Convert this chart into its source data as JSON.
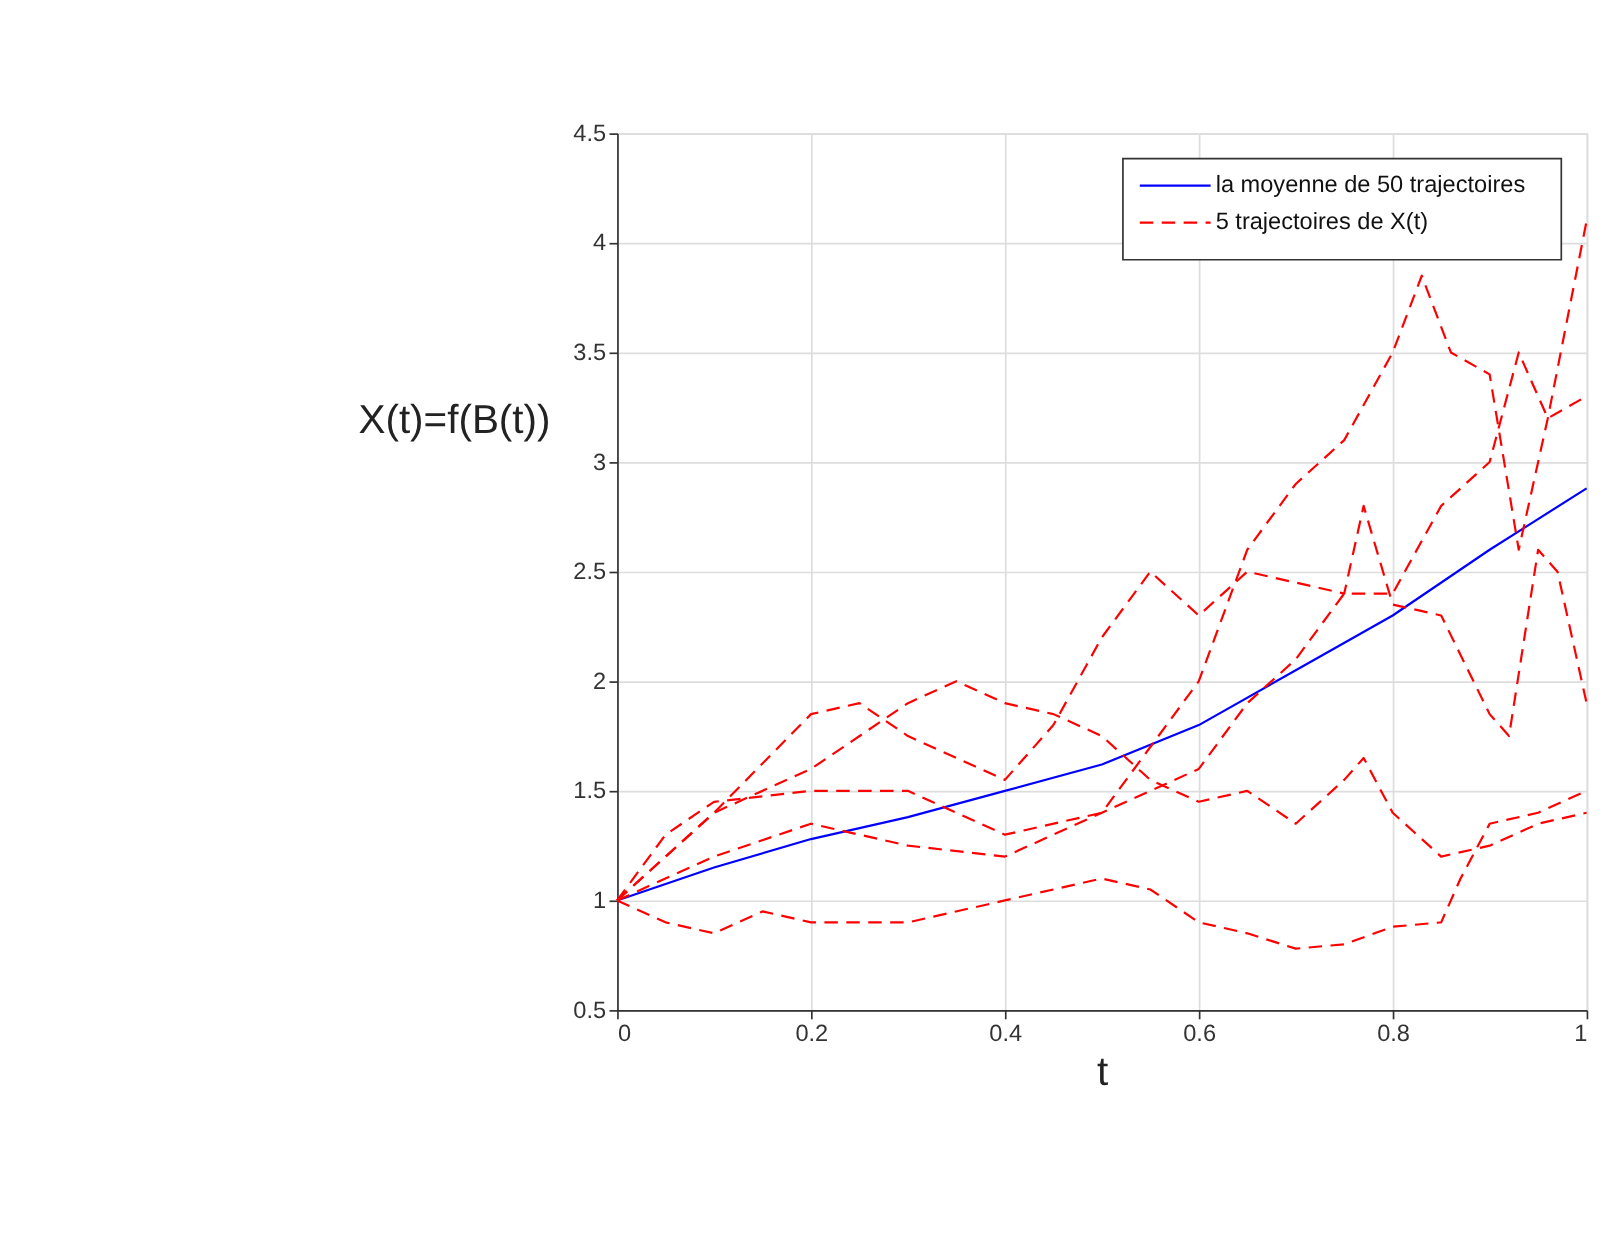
{
  "chart_data": {
    "type": "line",
    "xlabel": "t",
    "ylabel": "X(t)=f(B(t))",
    "xlim": [
      0,
      1
    ],
    "xticks": [
      0,
      0.2,
      0.4,
      0.6,
      0.8,
      1
    ],
    "ylim": [
      0.5,
      4.5
    ],
    "yticks": [
      0.5,
      1,
      1.5,
      2,
      2.5,
      3,
      3.5,
      4,
      4.5
    ],
    "grid": true,
    "legend": "top right",
    "series": [
      {
        "name": "la moyenne de 50 trajectoires",
        "color": "#0000ff",
        "line_style": "solid",
        "x": [
          0,
          0.1,
          0.2,
          0.3,
          0.4,
          0.5,
          0.6,
          0.7,
          0.8,
          0.9,
          1
        ],
        "values": [
          1.0,
          1.15,
          1.28,
          1.38,
          1.5,
          1.62,
          1.8,
          2.05,
          2.3,
          2.6,
          2.88
        ]
      },
      {
        "name": "5 trajectoires de X(t)",
        "color": "#ff0000",
        "line_style": "dashed",
        "x": [
          0,
          0.05,
          0.1,
          0.2,
          0.3,
          0.4,
          0.5,
          0.55,
          0.6,
          0.65,
          0.7,
          0.75,
          0.8,
          0.83,
          0.86,
          0.9,
          0.93,
          0.96,
          1
        ],
        "values": [
          1.0,
          1.3,
          1.45,
          1.5,
          1.5,
          1.3,
          1.4,
          1.7,
          2.0,
          2.6,
          2.9,
          3.1,
          3.5,
          3.85,
          3.5,
          3.4,
          2.6,
          3.2,
          4.1
        ]
      },
      {
        "color": "#ff0000",
        "line_style": "dashed",
        "x": [
          0,
          0.1,
          0.2,
          0.25,
          0.3,
          0.4,
          0.45,
          0.5,
          0.55,
          0.6,
          0.65,
          0.7,
          0.75,
          0.77,
          0.8,
          0.85,
          0.9,
          0.92,
          0.95,
          0.97,
          1
        ],
        "values": [
          1.0,
          1.4,
          1.85,
          1.9,
          1.75,
          1.55,
          1.8,
          2.2,
          2.5,
          2.3,
          2.5,
          2.45,
          2.4,
          2.8,
          2.35,
          2.3,
          1.85,
          1.75,
          2.6,
          2.5,
          1.9
        ]
      },
      {
        "color": "#ff0000",
        "line_style": "dashed",
        "x": [
          0,
          0.1,
          0.2,
          0.3,
          0.35,
          0.4,
          0.45,
          0.5,
          0.55,
          0.6,
          0.65,
          0.7,
          0.75,
          0.77,
          0.8,
          0.85,
          0.9,
          0.95,
          1
        ],
        "values": [
          1.0,
          1.4,
          1.6,
          1.9,
          2.0,
          1.9,
          1.85,
          1.75,
          1.55,
          1.45,
          1.5,
          1.35,
          1.55,
          1.65,
          1.4,
          1.2,
          1.25,
          1.35,
          1.4
        ]
      },
      {
        "color": "#ff0000",
        "line_style": "dashed",
        "x": [
          0,
          0.05,
          0.1,
          0.15,
          0.2,
          0.3,
          0.4,
          0.5,
          0.55,
          0.6,
          0.65,
          0.7,
          0.75,
          0.8,
          0.85,
          0.87,
          0.9,
          0.95,
          1
        ],
        "values": [
          1.0,
          0.9,
          0.85,
          0.95,
          0.9,
          0.9,
          1.0,
          1.1,
          1.05,
          0.9,
          0.85,
          0.78,
          0.8,
          0.88,
          0.9,
          1.1,
          1.35,
          1.4,
          1.5
        ]
      },
      {
        "color": "#ff0000",
        "line_style": "dashed",
        "x": [
          0,
          0.1,
          0.2,
          0.3,
          0.4,
          0.5,
          0.6,
          0.65,
          0.7,
          0.75,
          0.8,
          0.85,
          0.9,
          0.93,
          0.96,
          1
        ],
        "values": [
          1.0,
          1.2,
          1.35,
          1.25,
          1.2,
          1.4,
          1.6,
          1.9,
          2.1,
          2.4,
          2.4,
          2.8,
          3.0,
          3.5,
          3.2,
          3.3
        ]
      }
    ]
  }
}
